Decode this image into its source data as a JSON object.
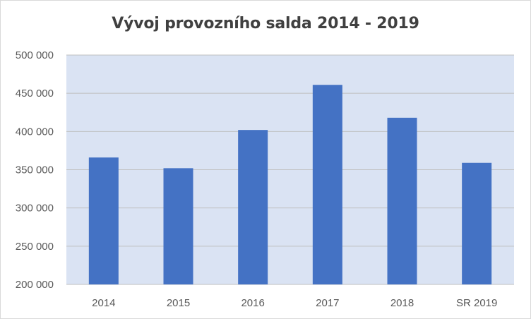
{
  "chart_data": {
    "type": "bar",
    "title": "Vývoj provozního salda 2014 - 2019",
    "categories": [
      "2014",
      "2015",
      "2016",
      "2017",
      "2018",
      "SR 2019"
    ],
    "values": [
      366000,
      352000,
      402000,
      461000,
      418000,
      359000
    ],
    "ylim": [
      200000,
      500000
    ],
    "yticks": [
      200000,
      250000,
      300000,
      350000,
      400000,
      450000,
      500000
    ],
    "ytick_labels": [
      "200 000",
      "250 000",
      "300 000",
      "350 000",
      "400 000",
      "450 000",
      "500 000"
    ],
    "grid": true,
    "bar_color": "#4472c4",
    "plot_background": "#dae3f3",
    "gridline_color": "#bfbfbf"
  }
}
